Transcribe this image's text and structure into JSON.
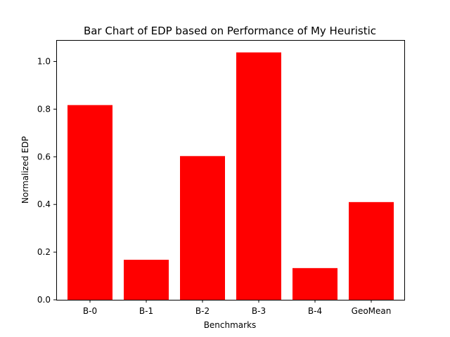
{
  "chart_data": {
    "type": "bar",
    "title": "Bar Chart of EDP based on Performance of My Heuristic",
    "xlabel": "Benchmarks",
    "ylabel": "Normalized EDP",
    "categories": [
      "B-0",
      "B-1",
      "B-2",
      "B-3",
      "B-4",
      "GeoMean"
    ],
    "values": [
      0.817,
      0.168,
      0.603,
      1.038,
      0.133,
      0.41
    ],
    "ylim": [
      0,
      1.09
    ],
    "yticks": [
      0.0,
      0.2,
      0.4,
      0.6,
      0.8,
      1.0
    ],
    "ytick_labels": [
      "0.0",
      "0.2",
      "0.4",
      "0.6",
      "0.8",
      "1.0"
    ],
    "bar_color": "#ff0000",
    "grid": false,
    "legend": "none"
  }
}
